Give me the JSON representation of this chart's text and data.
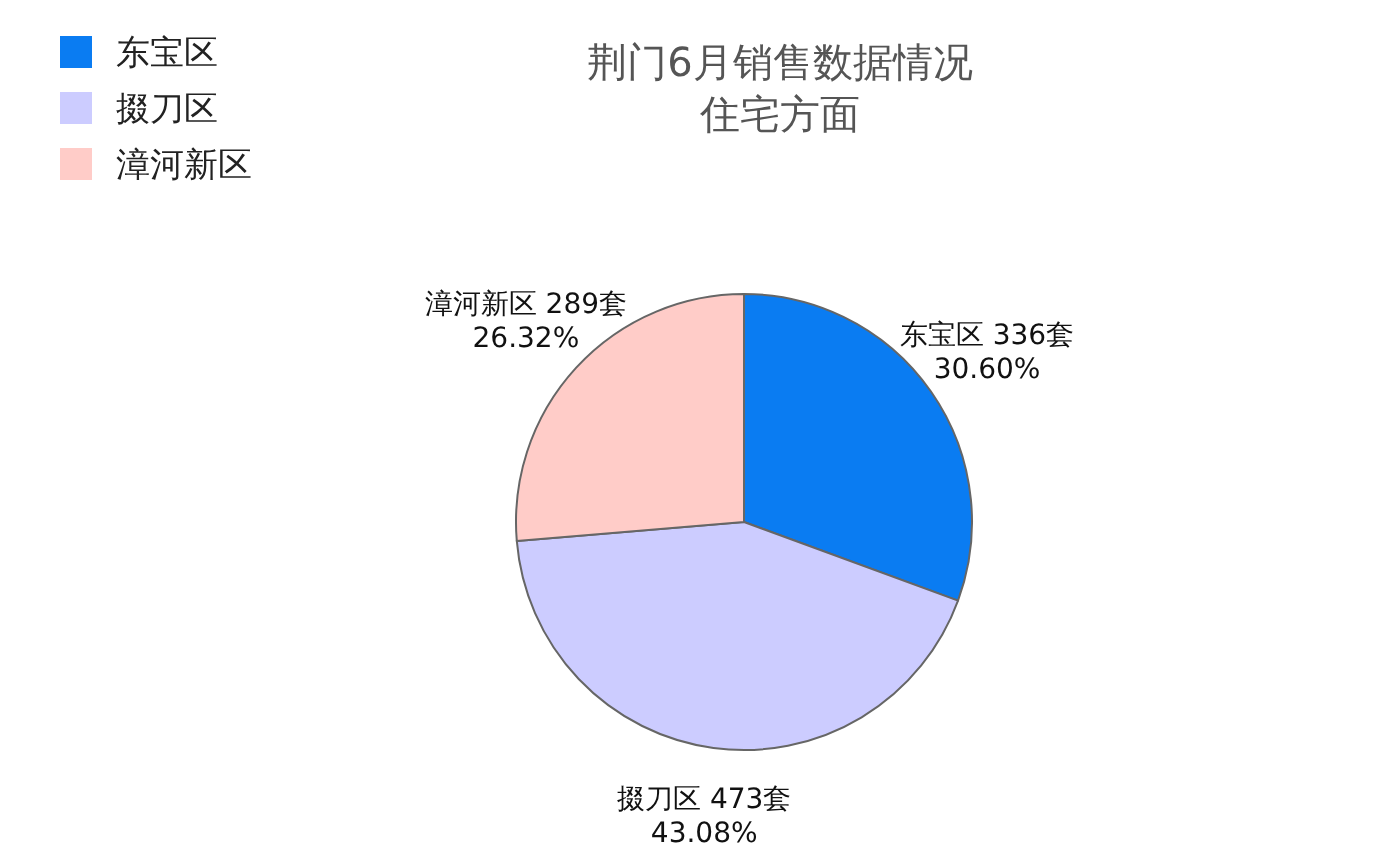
{
  "chart_data": {
    "type": "pie",
    "title": "荆门6月销售数据情况",
    "subtitle": "住宅方面",
    "categories": [
      "东宝区",
      "掇刀区",
      "漳河新区"
    ],
    "values": [
      336,
      473,
      289
    ],
    "colors": [
      "#0a7cf2",
      "#ccccff",
      "#ffccc8"
    ],
    "value_labels": [
      "336套\n30.60%",
      "473套\n43.08%",
      "289套\n26.32%"
    ],
    "legend": "top left"
  }
}
